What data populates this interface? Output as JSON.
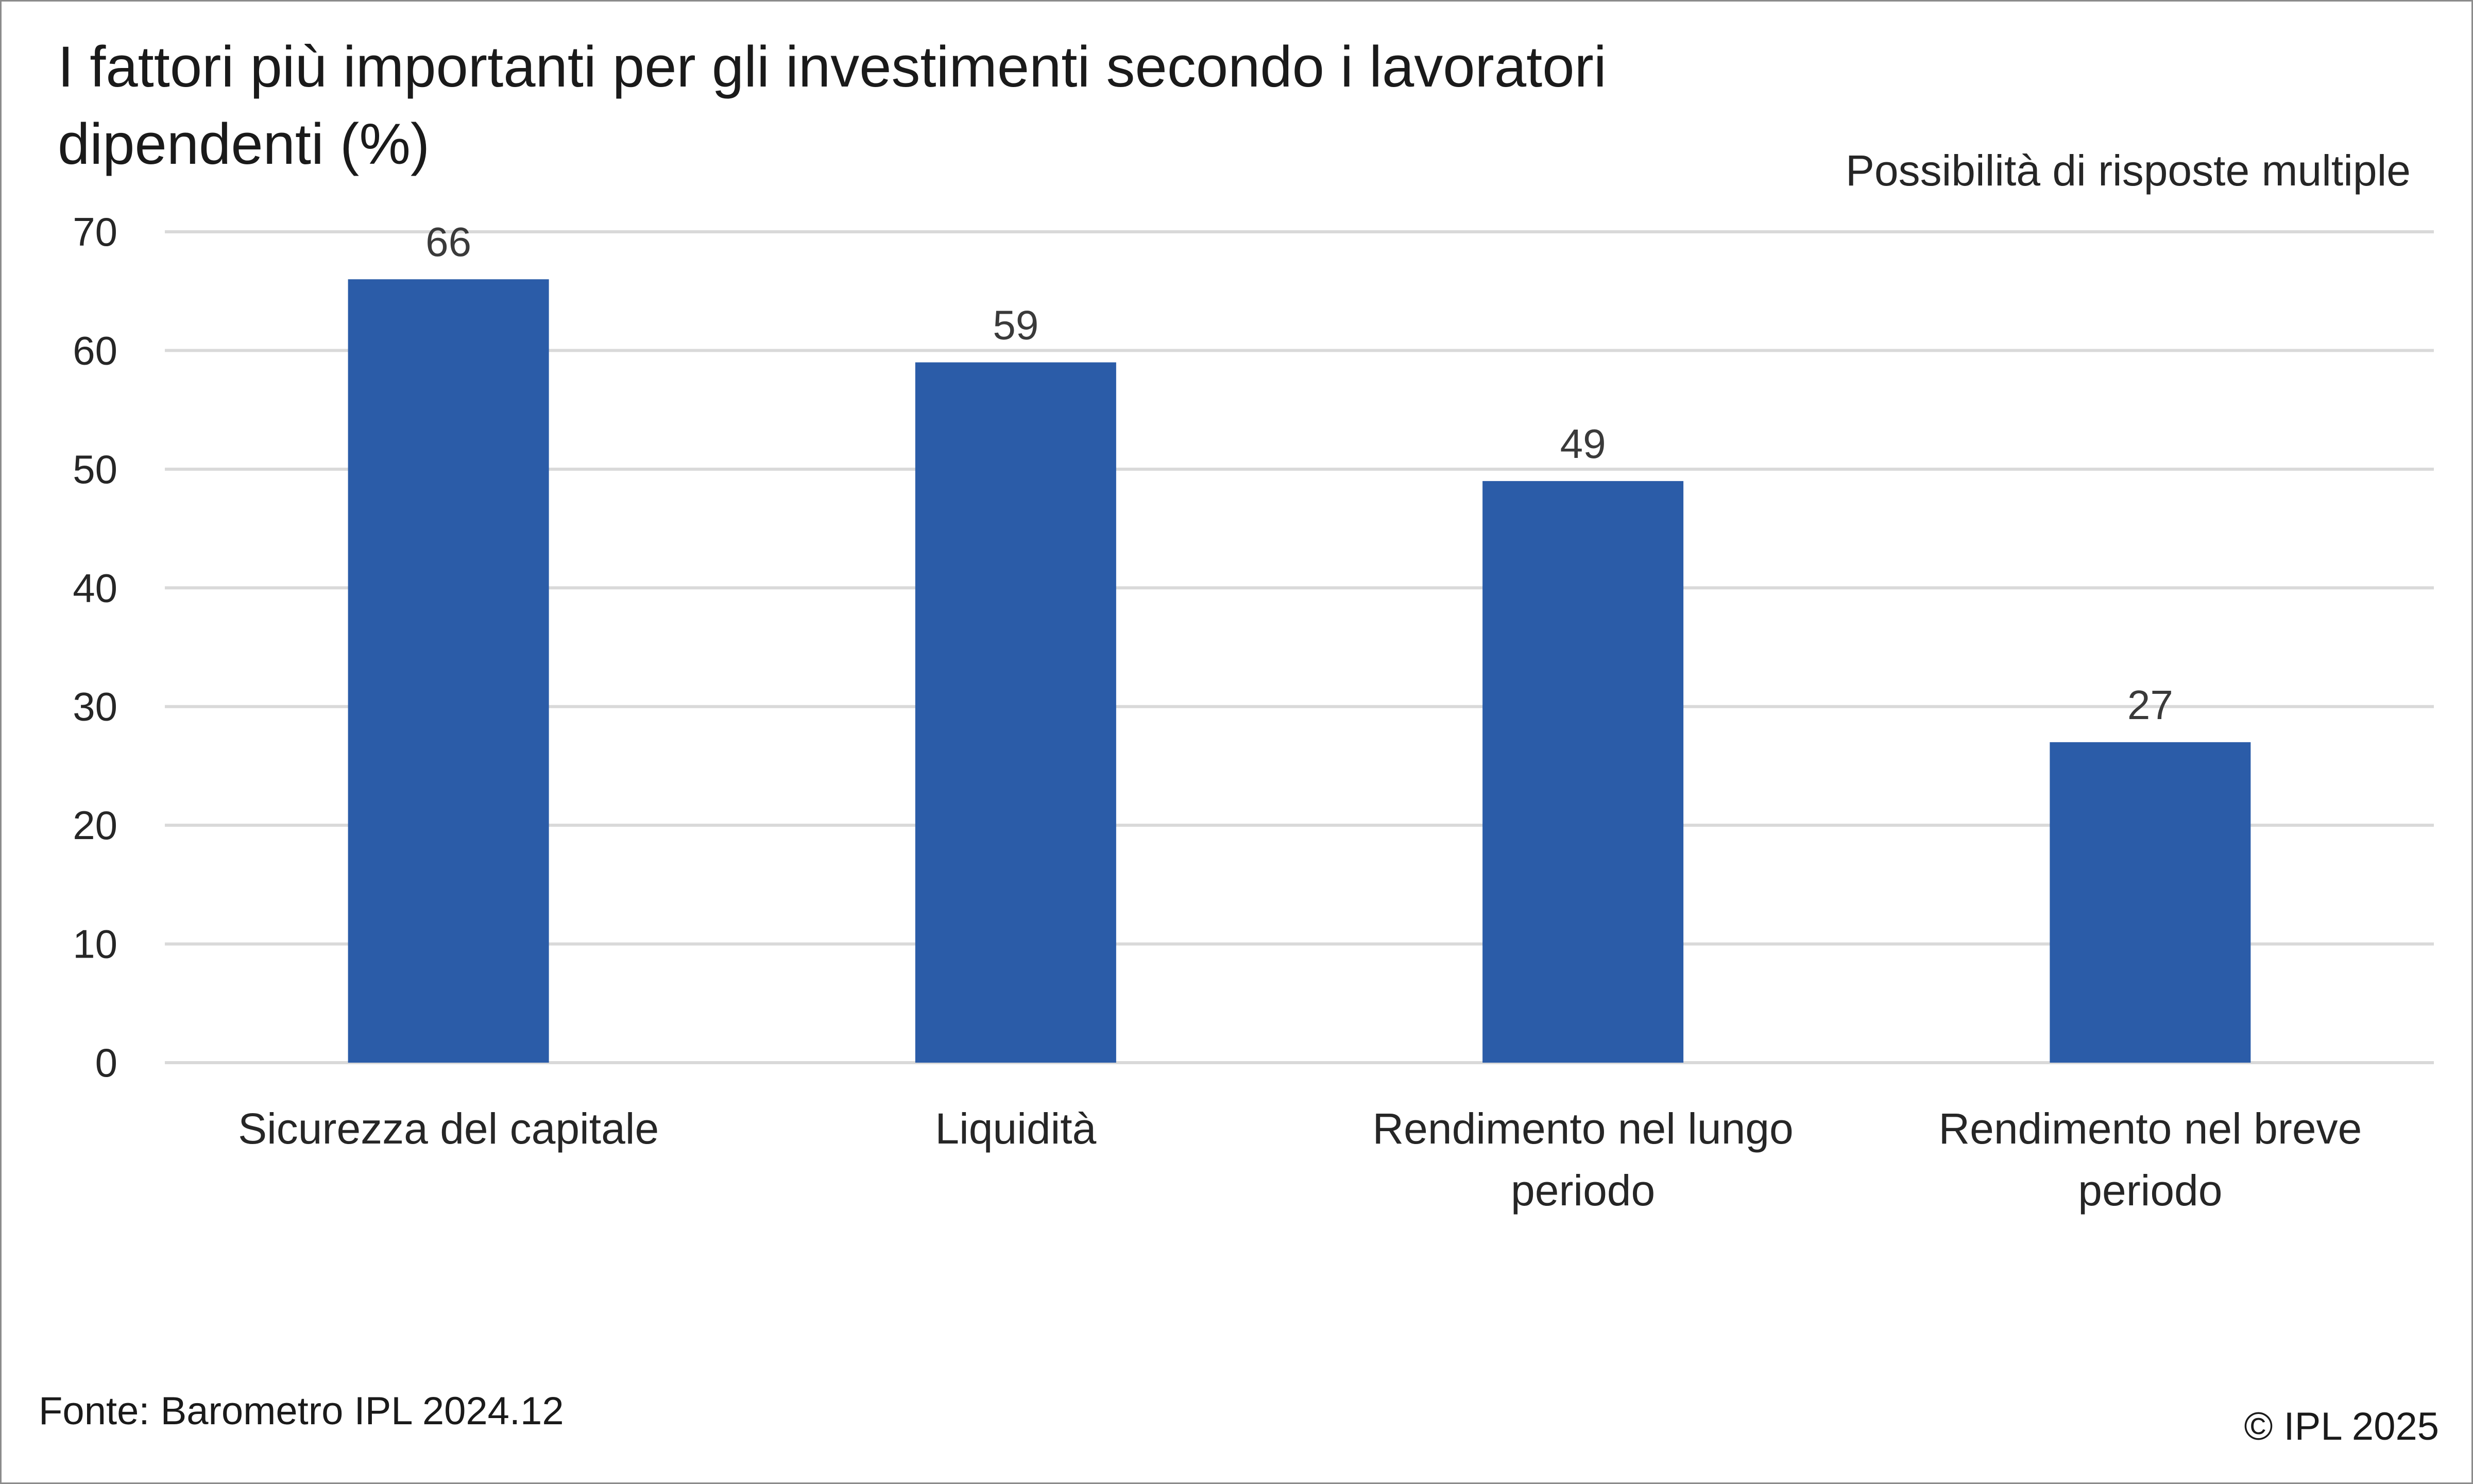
{
  "chart_data": {
    "type": "bar",
    "title_lines": [
      "I fattori più importanti per gli investimenti secondo i lavoratori",
      "dipendenti (%)"
    ],
    "subtitle": "Possibilità di risposte multiple",
    "categories": [
      [
        "Sicurezza del capitale"
      ],
      [
        "Liquidità"
      ],
      [
        "Rendimento nel lungo",
        "periodo"
      ],
      [
        "Rendimento nel breve",
        "periodo"
      ]
    ],
    "values": [
      66,
      59,
      49,
      27
    ],
    "ylim": [
      0,
      70
    ],
    "yticks": [
      0,
      10,
      20,
      30,
      40,
      50,
      60,
      70
    ],
    "grid": true,
    "bar_color": "#2b5ca8",
    "gridline_color": "#d9d9d9",
    "source": "Fonte: Barometro IPL 2024.12",
    "copyright": "©  IPL 2025"
  }
}
